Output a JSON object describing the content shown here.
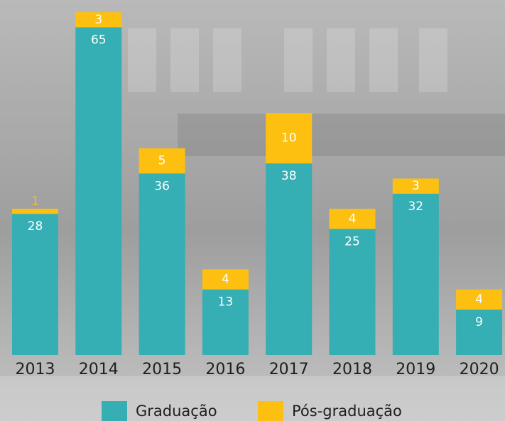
{
  "chart_data": {
    "type": "stacked-bar",
    "categories": [
      "2013",
      "2014",
      "2015",
      "2016",
      "2017",
      "2018",
      "2019",
      "2020"
    ],
    "series": [
      {
        "name": "Graduação",
        "color": "#35aeb4",
        "values": [
          28,
          65,
          36,
          13,
          38,
          25,
          32,
          9
        ]
      },
      {
        "name": "Pós-graduação",
        "color": "#fdc010",
        "values": [
          1,
          3,
          5,
          4,
          10,
          4,
          3,
          4
        ]
      }
    ]
  }
}
